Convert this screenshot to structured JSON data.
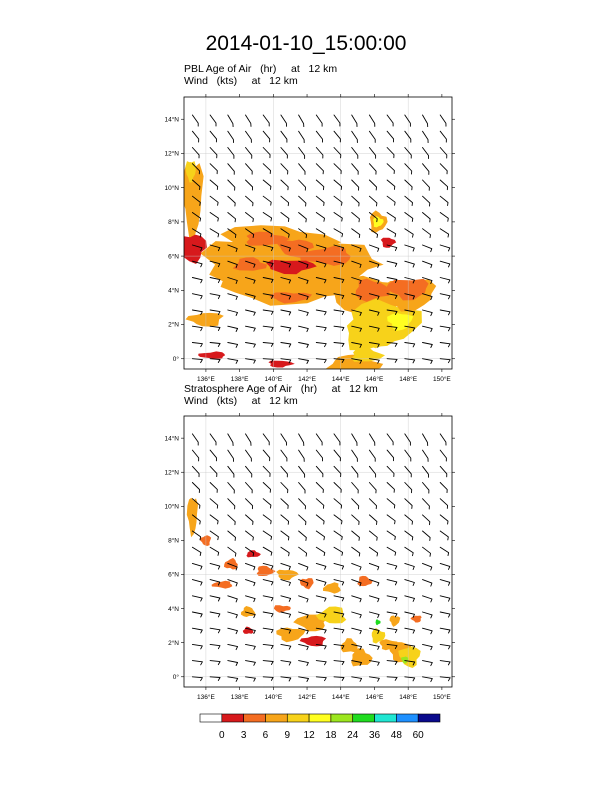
{
  "title": "2014-01-10_15:00:00",
  "panels": [
    {
      "field_line": "PBL Age of Air   (hr)     at   12 km",
      "wind_line": "Wind   (kts)     at   12 km"
    },
    {
      "field_line": "Stratosphere Age of Air   (hr)     at   12 km",
      "wind_line": "Wind   (kts)     at   12 km"
    }
  ],
  "chart_data": [
    {
      "type": "heatmap",
      "title": "PBL Age of Air   (hr)     at   12 km",
      "x_ticks": [
        "136°E",
        "138°E",
        "140°E",
        "142°E",
        "144°E",
        "146°E",
        "148°E",
        "150°E"
      ],
      "y_ticks": [
        "0°",
        "2°N",
        "4°N",
        "6°N",
        "8°N",
        "10°N",
        "12°N",
        "14°N"
      ],
      "xlim": [
        134.7,
        150.6
      ],
      "ylim": [
        -0.6,
        15.3
      ],
      "grid": true,
      "overlay": "wind barbs (kts)"
    },
    {
      "type": "heatmap",
      "title": "Stratosphere Age of Air   (hr)     at   12 km",
      "x_ticks": [
        "136°E",
        "138°E",
        "140°E",
        "142°E",
        "144°E",
        "146°E",
        "148°E",
        "150°E"
      ],
      "y_ticks": [
        "0°",
        "2°N",
        "4°N",
        "6°N",
        "8°N",
        "10°N",
        "12°N",
        "14°N"
      ],
      "xlim": [
        134.7,
        150.6
      ],
      "ylim": [
        -0.6,
        15.3
      ],
      "grid": true,
      "overlay": "wind barbs (kts)"
    }
  ],
  "colorbar": {
    "labels": [
      "0",
      "3",
      "6",
      "9",
      "12",
      "18",
      "24",
      "36",
      "48",
      "60"
    ],
    "colors": [
      "#ffffff",
      "#d7191c",
      "#f46d22",
      "#f7a51a",
      "#f7d21a",
      "#ffff20",
      "#9ce61e",
      "#20dc20",
      "#20e6d2",
      "#1e90ff",
      "#0a0a8c"
    ]
  }
}
